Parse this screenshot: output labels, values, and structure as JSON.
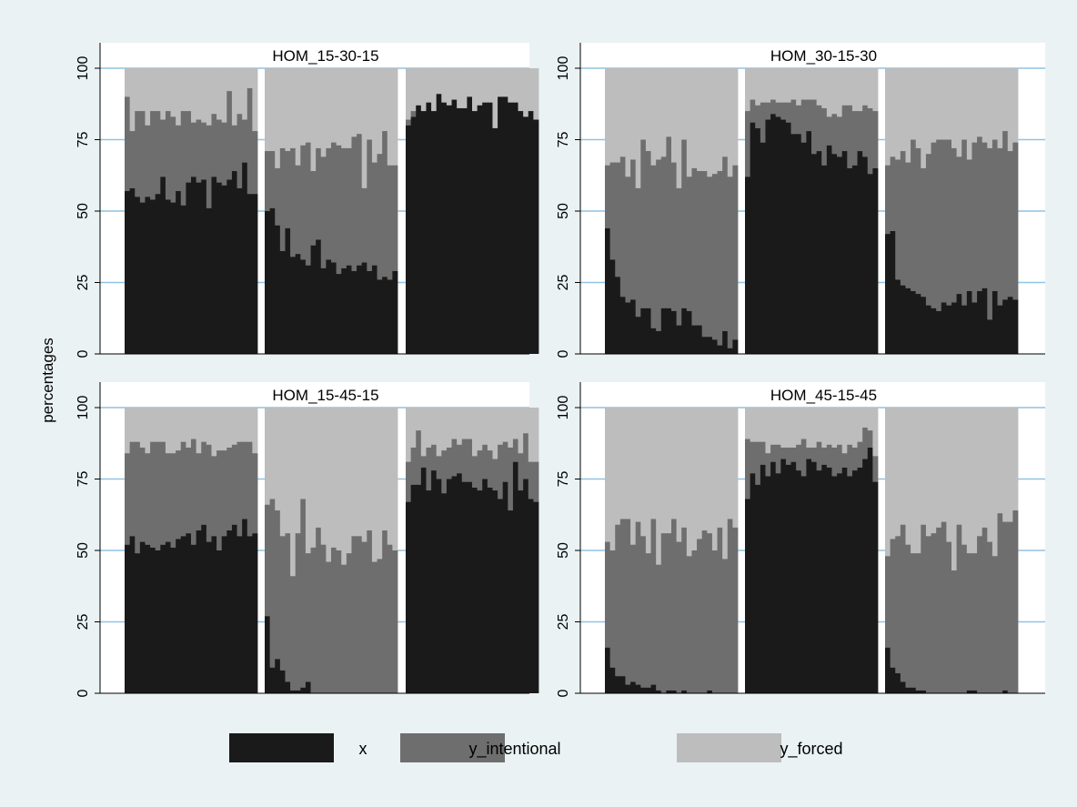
{
  "y_axis_label": "percentages",
  "legend": [
    {
      "label": "x",
      "color": "#1a1a1a"
    },
    {
      "label": "y_intentional",
      "color": "#6e6e6e"
    },
    {
      "label": "y_forced",
      "color": "#bdbdbd"
    }
  ],
  "colors": {
    "background": "#eaf2f3",
    "plot_background": "#ffffff",
    "gridline": "#8fc4e3",
    "axis": "#000000"
  },
  "chart_data": [
    {
      "type": "bar",
      "stacked": true,
      "title": "HOM_15-30-15",
      "ylim": [
        0,
        100
      ],
      "yticks": [
        0,
        25,
        50,
        75,
        100
      ],
      "grid": true,
      "groups": [
        {
          "x": [
            57,
            58,
            55,
            53,
            55,
            54,
            56,
            62,
            54,
            53,
            57,
            52,
            60,
            62,
            60,
            61,
            51,
            62,
            60,
            59,
            61,
            64,
            58,
            67,
            56,
            56
          ],
          "y_intentional": [
            33,
            20,
            30,
            32,
            25,
            31,
            29,
            20,
            31,
            30,
            23,
            33,
            25,
            19,
            22,
            20,
            29,
            22,
            22,
            22,
            31,
            16,
            26,
            15,
            37,
            22
          ]
        },
        {
          "x": [
            50,
            51,
            45,
            36,
            44,
            34,
            35,
            33,
            31,
            38,
            40,
            30,
            33,
            32,
            28,
            30,
            31,
            29,
            31,
            32,
            29,
            31,
            26,
            27,
            26,
            29
          ],
          "y_intentional": [
            21,
            20,
            20,
            36,
            27,
            38,
            31,
            40,
            43,
            26,
            32,
            39,
            39,
            42,
            45,
            42,
            41,
            47,
            46,
            26,
            46,
            36,
            44,
            51,
            40,
            37
          ]
        },
        {
          "x": [
            80,
            83,
            87,
            85,
            88,
            85,
            91,
            88,
            87,
            89,
            86,
            86,
            90,
            85,
            87,
            88,
            88,
            79,
            90,
            90,
            88,
            88,
            85,
            83,
            85,
            82
          ],
          "y_intentional": [
            2,
            2,
            0,
            0,
            0,
            0,
            0,
            0,
            0,
            0,
            0,
            0,
            0,
            0,
            0,
            0,
            0,
            0,
            0,
            0,
            0,
            0,
            0,
            0,
            0,
            0
          ]
        }
      ]
    },
    {
      "type": "bar",
      "stacked": true,
      "title": "HOM_30-15-30",
      "ylim": [
        0,
        100
      ],
      "yticks": [
        0,
        25,
        50,
        75,
        100
      ],
      "grid": true,
      "groups": [
        {
          "x": [
            44,
            33,
            27,
            20,
            18,
            19,
            13,
            16,
            16,
            9,
            8,
            16,
            16,
            15,
            10,
            16,
            15,
            10,
            10,
            6,
            6,
            5,
            3,
            8,
            2,
            5
          ],
          "y_intentional": [
            22,
            34,
            40,
            49,
            44,
            49,
            45,
            59,
            55,
            57,
            60,
            53,
            60,
            52,
            48,
            59,
            47,
            55,
            54,
            58,
            56,
            58,
            61,
            61,
            60,
            61
          ]
        },
        {
          "x": [
            62,
            81,
            79,
            74,
            82,
            84,
            83,
            82,
            81,
            77,
            77,
            74,
            78,
            70,
            71,
            66,
            73,
            70,
            69,
            71,
            65,
            66,
            71,
            69,
            63,
            65
          ],
          "y_intentional": [
            23,
            8,
            8,
            14,
            6,
            5,
            5,
            6,
            7,
            12,
            10,
            15,
            11,
            19,
            16,
            20,
            10,
            14,
            14,
            16,
            22,
            19,
            14,
            18,
            23,
            20
          ]
        },
        {
          "x": [
            42,
            43,
            26,
            24,
            23,
            22,
            21,
            20,
            17,
            16,
            15,
            18,
            17,
            18,
            21,
            17,
            22,
            18,
            22,
            23,
            12,
            22,
            17,
            19,
            20,
            19
          ],
          "y_intentional": [
            24,
            26,
            42,
            47,
            44,
            53,
            51,
            45,
            53,
            58,
            60,
            57,
            58,
            54,
            48,
            58,
            46,
            56,
            54,
            51,
            60,
            53,
            55,
            59,
            51,
            55
          ]
        }
      ]
    },
    {
      "type": "bar",
      "stacked": true,
      "title": "HOM_15-45-15",
      "ylim": [
        0,
        100
      ],
      "yticks": [
        0,
        25,
        50,
        75,
        100
      ],
      "grid": true,
      "groups": [
        {
          "x": [
            52,
            55,
            49,
            53,
            52,
            51,
            50,
            52,
            53,
            51,
            54,
            55,
            56,
            52,
            57,
            59,
            53,
            55,
            50,
            55,
            57,
            59,
            55,
            61,
            55,
            56
          ],
          "y_intentional": [
            32,
            33,
            39,
            33,
            32,
            37,
            38,
            36,
            31,
            33,
            31,
            33,
            30,
            37,
            27,
            29,
            34,
            28,
            35,
            30,
            29,
            28,
            33,
            27,
            33,
            28
          ]
        },
        {
          "x": [
            27,
            9,
            12,
            8,
            4,
            1,
            1,
            2,
            4,
            0,
            0,
            0,
            0,
            0,
            0,
            0,
            0,
            0,
            0,
            0,
            0,
            0,
            0,
            0,
            0,
            0
          ],
          "y_intentional": [
            39,
            59,
            52,
            47,
            52,
            40,
            55,
            66,
            45,
            51,
            58,
            52,
            46,
            51,
            50,
            45,
            49,
            55,
            55,
            53,
            57,
            46,
            47,
            57,
            52,
            50
          ]
        },
        {
          "x": [
            67,
            73,
            73,
            79,
            71,
            78,
            75,
            70,
            75,
            76,
            77,
            74,
            74,
            72,
            71,
            75,
            72,
            71,
            68,
            74,
            64,
            81,
            71,
            75,
            68,
            67
          ],
          "y_intentional": [
            14,
            13,
            19,
            4,
            15,
            9,
            8,
            15,
            11,
            13,
            10,
            15,
            15,
            11,
            14,
            12,
            13,
            11,
            19,
            14,
            22,
            8,
            13,
            16,
            13,
            14
          ]
        }
      ]
    },
    {
      "type": "bar",
      "stacked": true,
      "title": "HOM_45-15-45",
      "ylim": [
        0,
        100
      ],
      "yticks": [
        0,
        25,
        50,
        75,
        100
      ],
      "grid": true,
      "groups": [
        {
          "x": [
            16,
            9,
            6,
            6,
            3,
            4,
            3,
            2,
            2,
            3,
            1,
            0,
            1,
            1,
            0,
            1,
            0,
            0,
            0,
            0,
            1,
            0,
            0,
            0,
            0,
            0
          ],
          "y_intentional": [
            37,
            41,
            53,
            55,
            58,
            48,
            57,
            53,
            47,
            58,
            44,
            56,
            55,
            60,
            53,
            57,
            48,
            50,
            54,
            57,
            55,
            50,
            58,
            47,
            61,
            58
          ]
        },
        {
          "x": [
            68,
            77,
            73,
            80,
            76,
            81,
            77,
            82,
            80,
            81,
            78,
            76,
            82,
            81,
            78,
            80,
            79,
            76,
            77,
            79,
            76,
            78,
            79,
            82,
            86,
            74
          ],
          "y_intentional": [
            21,
            11,
            15,
            8,
            8,
            6,
            10,
            4,
            6,
            5,
            9,
            13,
            4,
            5,
            10,
            6,
            8,
            10,
            10,
            5,
            11,
            8,
            9,
            11,
            6,
            9
          ]
        },
        {
          "x": [
            16,
            9,
            7,
            4,
            2,
            2,
            1,
            1,
            0,
            0,
            0,
            0,
            0,
            0,
            0,
            0,
            1,
            1,
            0,
            0,
            0,
            0,
            0,
            1,
            0,
            0
          ],
          "y_intentional": [
            32,
            45,
            48,
            55,
            50,
            47,
            48,
            58,
            55,
            56,
            58,
            60,
            53,
            43,
            59,
            52,
            48,
            48,
            55,
            58,
            53,
            48,
            63,
            59,
            60,
            64
          ]
        }
      ]
    }
  ]
}
